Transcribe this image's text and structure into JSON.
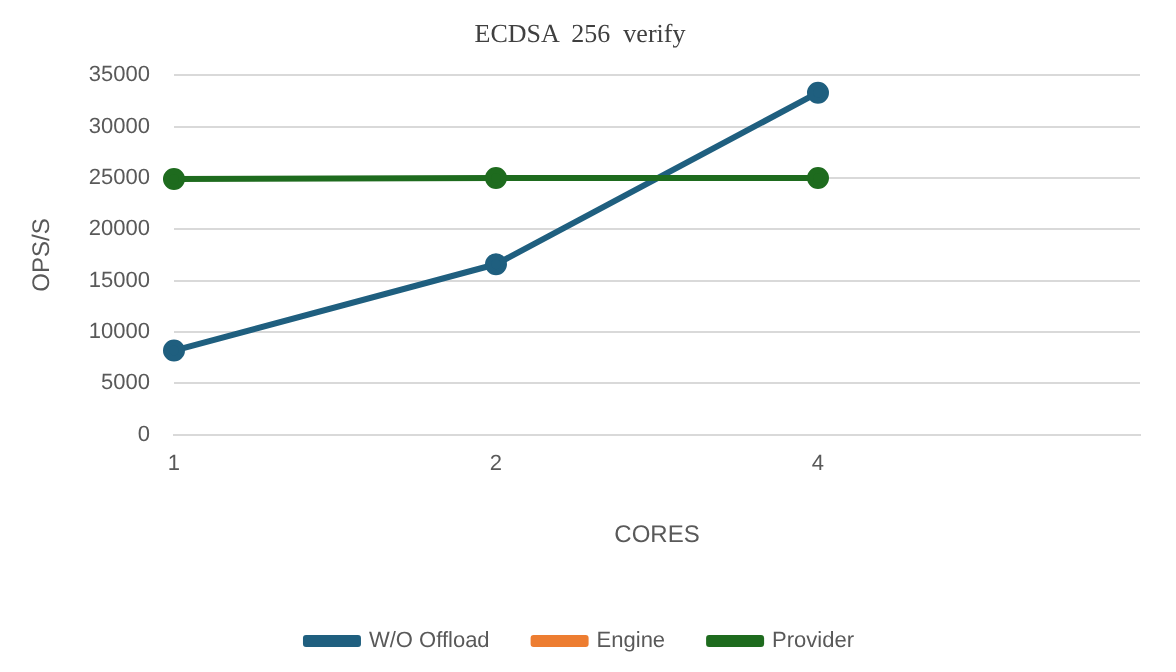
{
  "chart_data": {
    "type": "line",
    "title": "ECDSA  256  verify",
    "xlabel": "CORES",
    "ylabel": "OPS/S",
    "categories": [
      "1",
      "2",
      "4",
      null
    ],
    "series": [
      {
        "name": "W/O Offload",
        "color": "#1f5f7f",
        "values": [
          8200,
          16600,
          33300,
          null
        ]
      },
      {
        "name": "Engine",
        "color": "#ed7d31",
        "values": [
          null,
          null,
          null,
          null
        ]
      },
      {
        "name": "Provider",
        "color": "#1e6b1e",
        "values": [
          24900,
          25000,
          25000,
          null
        ]
      }
    ],
    "ylim": [
      0,
      35000
    ],
    "yticks": [
      0,
      5000,
      10000,
      15000,
      20000,
      25000,
      30000,
      35000
    ],
    "grid": "y",
    "legend": "bottom",
    "marker": "circle",
    "line_style": "solid"
  }
}
